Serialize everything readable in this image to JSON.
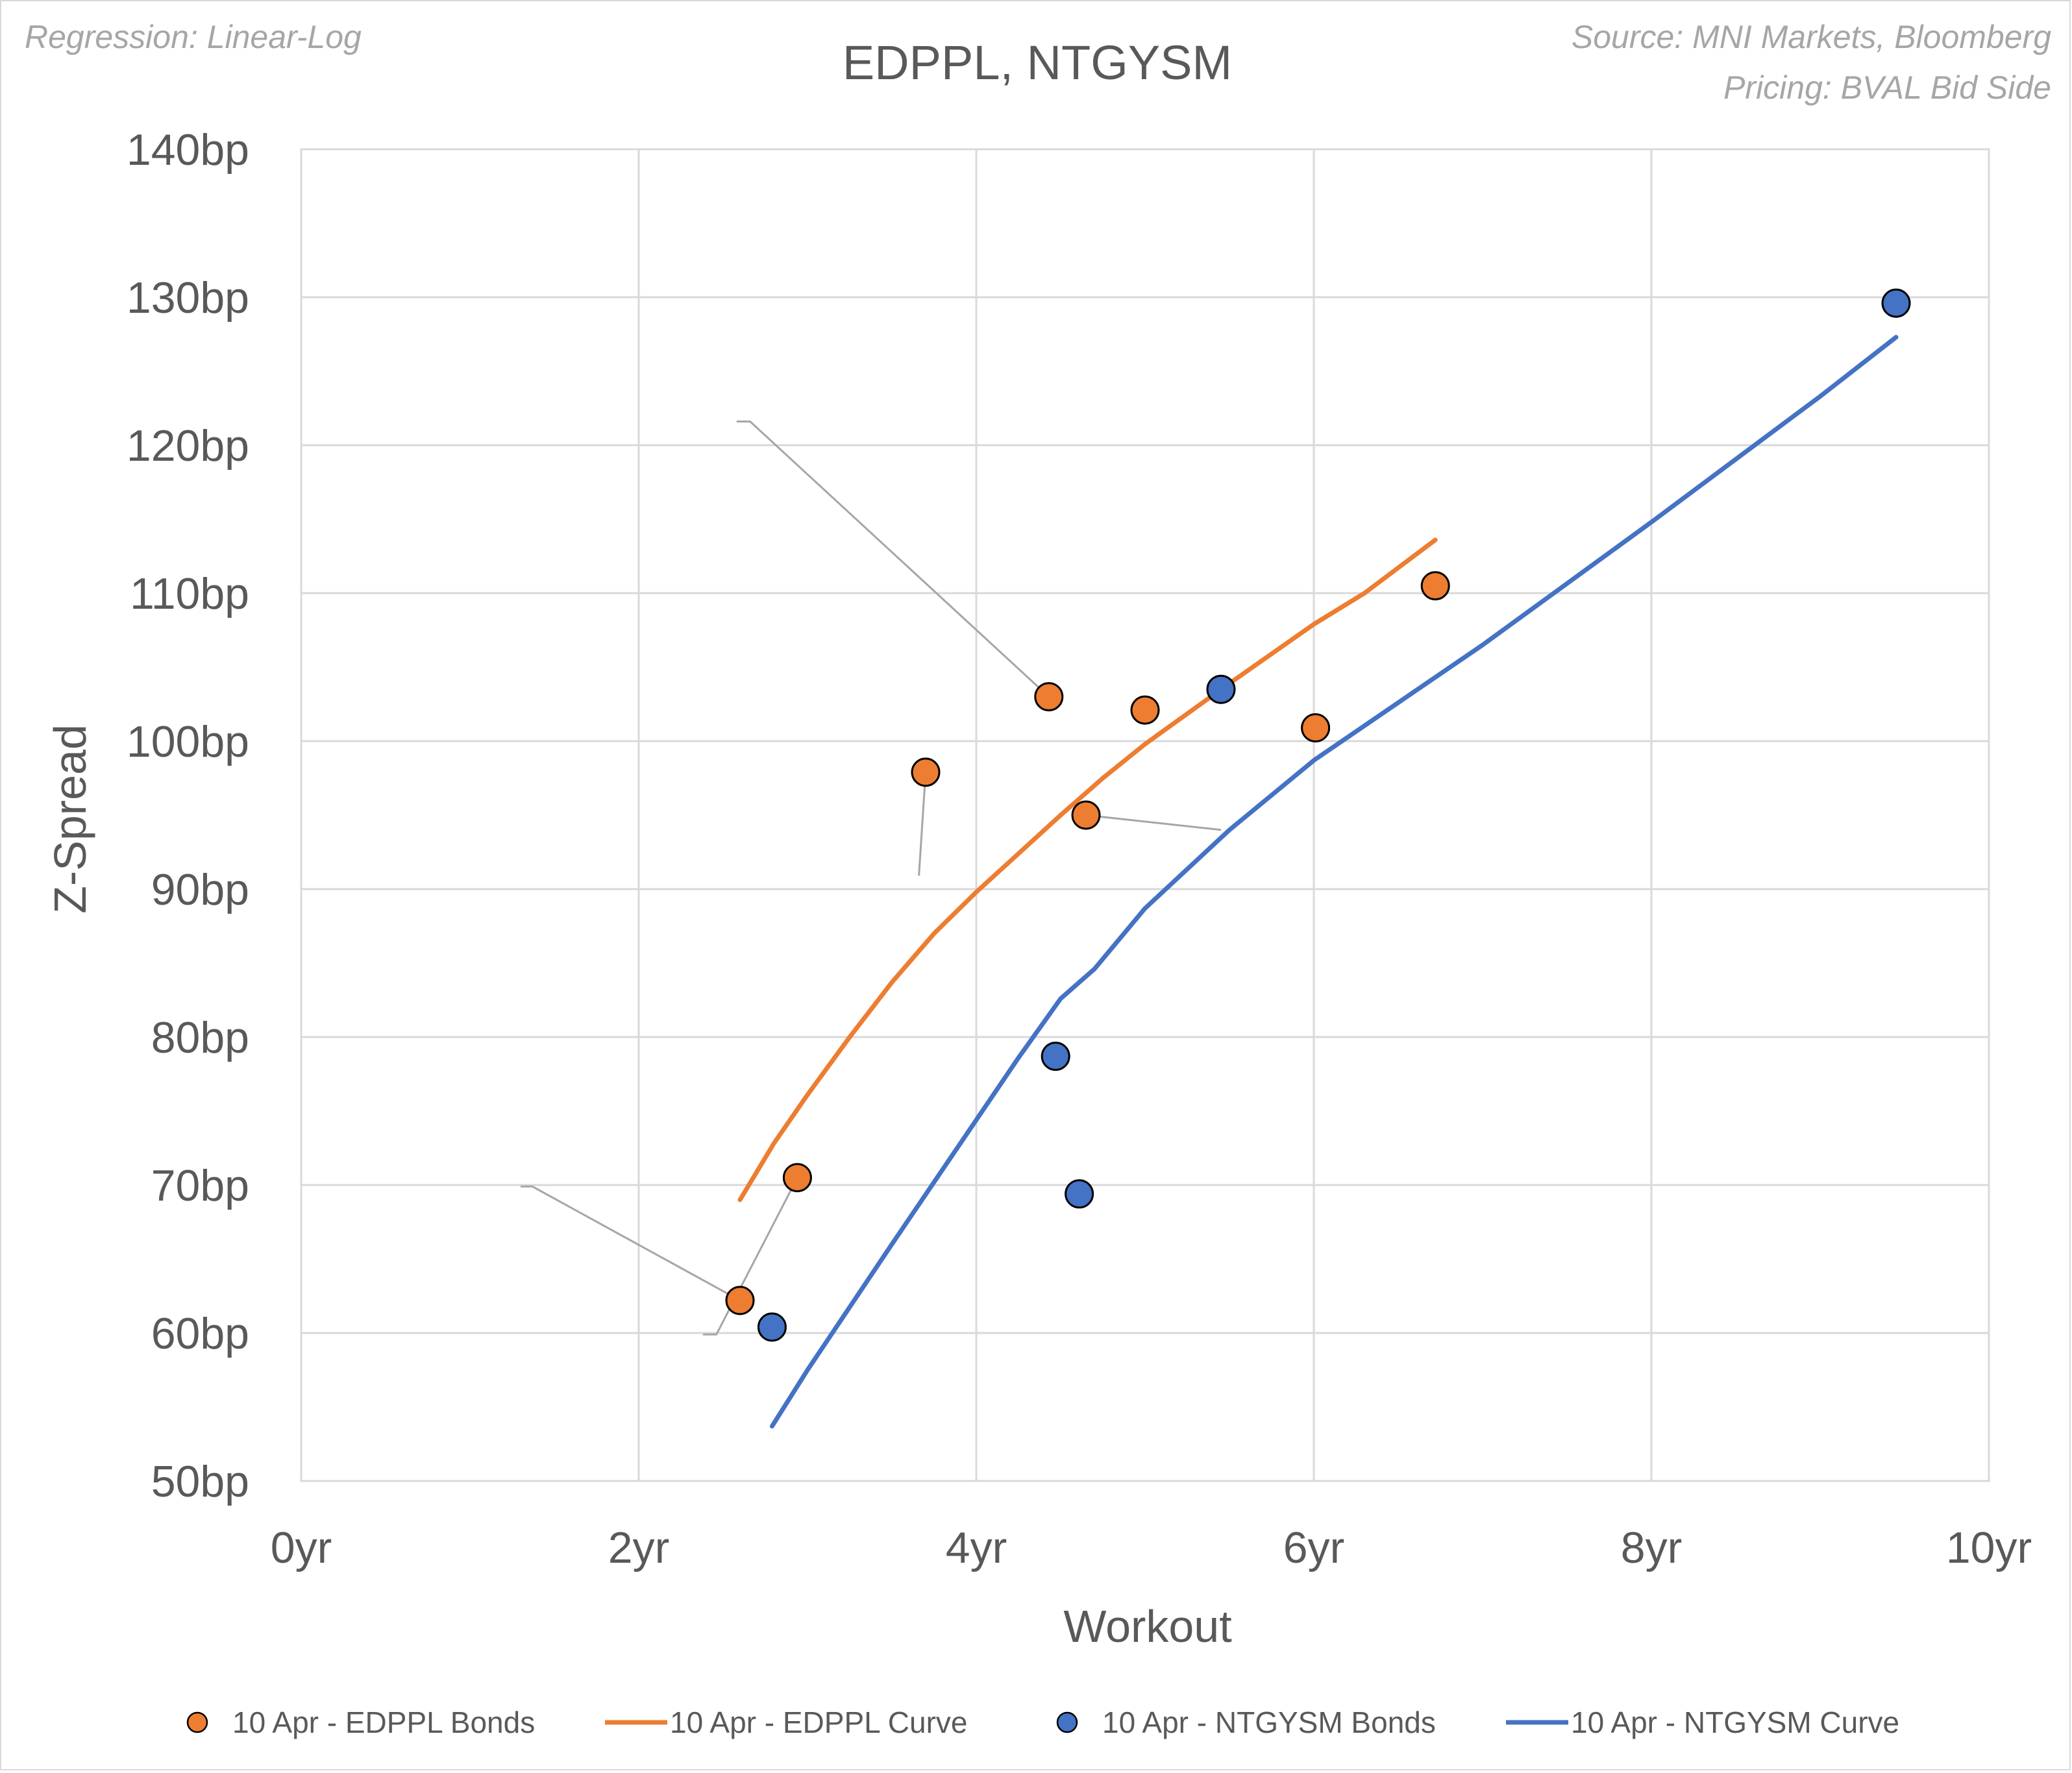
{
  "notes": {
    "regression": "Regression: Linear-Log",
    "source": "Source: MNI Markets, Bloomberg",
    "pricing": "Pricing: BVAL Bid Side"
  },
  "chart_data": {
    "type": "scatter",
    "title": "EDPPL, NTGYSM",
    "xlabel": "Workout",
    "ylabel": "Z-Spread",
    "xlim": [
      0,
      10
    ],
    "ylim": [
      50,
      140
    ],
    "xticks": [
      0,
      2,
      4,
      6,
      8,
      10
    ],
    "xtick_labels": [
      "0yr",
      "2yr",
      "4yr",
      "6yr",
      "8yr",
      "10yr"
    ],
    "yticks": [
      50,
      60,
      70,
      80,
      90,
      100,
      110,
      120,
      130,
      140
    ],
    "ytick_labels": [
      "50bp",
      "60bp",
      "70bp",
      "80bp",
      "90bp",
      "100bp",
      "110bp",
      "120bp",
      "130bp",
      "140bp"
    ],
    "grid": true,
    "legend_position": "bottom",
    "colors": {
      "edppl": "#ed7d31",
      "ntgysm": "#4472c4",
      "grid": "#d9d9d9",
      "leader": "#a6a6a6"
    },
    "series": [
      {
        "name": "10 Apr - EDPPL Bonds",
        "kind": "points",
        "color": "#ed7d31",
        "points": [
          {
            "x": 2.6,
            "y": 62.2
          },
          {
            "x": 2.94,
            "y": 70.5
          },
          {
            "x": 3.7,
            "y": 97.9
          },
          {
            "x": 4.43,
            "y": 103.0
          },
          {
            "x": 4.65,
            "y": 95.0
          },
          {
            "x": 5.0,
            "y": 102.1
          },
          {
            "x": 6.01,
            "y": 100.9
          },
          {
            "x": 6.72,
            "y": 110.5
          }
        ]
      },
      {
        "name": "10 Apr - EDPPL Curve",
        "kind": "line",
        "color": "#ed7d31",
        "points": [
          {
            "x": 2.6,
            "y": 69.0
          },
          {
            "x": 2.8,
            "y": 72.8
          },
          {
            "x": 3.0,
            "y": 76.1
          },
          {
            "x": 3.25,
            "y": 80.0
          },
          {
            "x": 3.5,
            "y": 83.7
          },
          {
            "x": 3.75,
            "y": 87.0
          },
          {
            "x": 4.0,
            "y": 89.8
          },
          {
            "x": 4.25,
            "y": 92.4
          },
          {
            "x": 4.5,
            "y": 95.0
          },
          {
            "x": 4.75,
            "y": 97.5
          },
          {
            "x": 5.0,
            "y": 99.8
          },
          {
            "x": 5.5,
            "y": 103.9
          },
          {
            "x": 6.0,
            "y": 107.9
          },
          {
            "x": 6.3,
            "y": 110.0
          },
          {
            "x": 6.72,
            "y": 113.6
          }
        ]
      },
      {
        "name": "10 Apr - NTGYSM Bonds",
        "kind": "points",
        "color": "#4472c4",
        "points": [
          {
            "x": 2.79,
            "y": 60.4
          },
          {
            "x": 4.47,
            "y": 78.7
          },
          {
            "x": 4.61,
            "y": 69.4
          },
          {
            "x": 5.45,
            "y": 103.5
          },
          {
            "x": 9.45,
            "y": 129.6
          }
        ]
      },
      {
        "name": "10 Apr - NTGYSM Curve",
        "kind": "line",
        "color": "#4472c4",
        "points": [
          {
            "x": 2.79,
            "y": 53.7
          },
          {
            "x": 3.0,
            "y": 57.5
          },
          {
            "x": 3.5,
            "y": 66.0
          },
          {
            "x": 4.0,
            "y": 74.4
          },
          {
            "x": 4.25,
            "y": 78.6
          },
          {
            "x": 4.5,
            "y": 82.6
          },
          {
            "x": 4.7,
            "y": 84.6
          },
          {
            "x": 5.0,
            "y": 88.7
          },
          {
            "x": 5.5,
            "y": 94.0
          },
          {
            "x": 6.0,
            "y": 98.7
          },
          {
            "x": 7.0,
            "y": 106.5
          },
          {
            "x": 8.0,
            "y": 114.8
          },
          {
            "x": 9.0,
            "y": 123.3
          },
          {
            "x": 9.45,
            "y": 127.3
          }
        ]
      }
    ],
    "leader_lines": [
      {
        "points": [
          {
            "x": 1.3,
            "y": 69.9
          },
          {
            "x": 1.37,
            "y": 69.9
          },
          {
            "x": 2.6,
            "y": 62.2
          }
        ]
      },
      {
        "points": [
          {
            "x": 2.38,
            "y": 59.9
          },
          {
            "x": 2.46,
            "y": 59.9
          },
          {
            "x": 2.94,
            "y": 70.5
          }
        ]
      },
      {
        "points": [
          {
            "x": 2.58,
            "y": 121.6
          },
          {
            "x": 2.66,
            "y": 121.6
          },
          {
            "x": 4.43,
            "y": 103.0
          }
        ]
      },
      {
        "points": [
          {
            "x": 3.66,
            "y": 90.9
          },
          {
            "x": 3.7,
            "y": 97.9
          }
        ]
      },
      {
        "points": [
          {
            "x": 5.45,
            "y": 94.0
          },
          {
            "x": 4.65,
            "y": 95.0
          }
        ]
      }
    ]
  }
}
